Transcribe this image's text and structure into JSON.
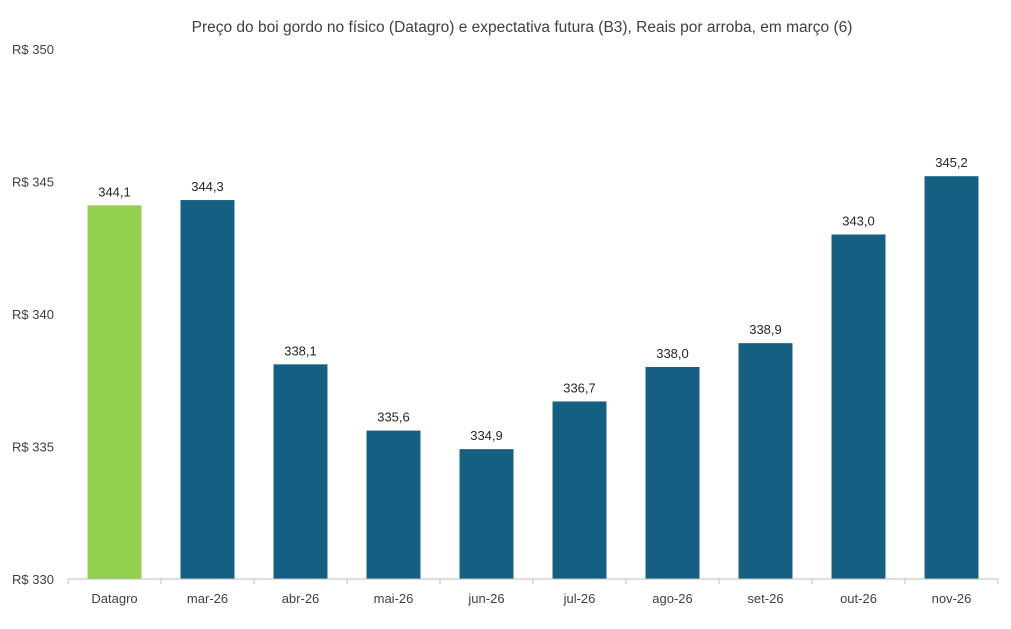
{
  "chart_data": {
    "type": "bar",
    "title": "Preço do boi gordo no físico (Datagro)  e expectativa futura (B3), Reais por arroba, em março (6)",
    "xlabel": "",
    "ylabel": "",
    "ylim": [
      330,
      350
    ],
    "yticks": [
      330,
      335,
      340,
      345,
      350
    ],
    "ytick_labels": [
      "R$ 330",
      "R$ 335",
      "R$ 340",
      "R$ 345",
      "R$ 350"
    ],
    "grid": false,
    "legend": "none",
    "categories": [
      "Datagro",
      "mar-26",
      "abr-26",
      "mai-26",
      "jun-26",
      "jul-26",
      "ago-26",
      "set-26",
      "out-26",
      "nov-26"
    ],
    "values": [
      344.1,
      344.3,
      338.1,
      335.6,
      334.9,
      336.7,
      338.0,
      338.9,
      343.0,
      345.2
    ],
    "value_labels": [
      "344,1",
      "344,3",
      "338,1",
      "335,6",
      "334,9",
      "336,7",
      "338,0",
      "338,9",
      "343,0",
      "345,2"
    ],
    "bar_colors": [
      "#92d050",
      "#156082",
      "#156082",
      "#156082",
      "#156082",
      "#156082",
      "#156082",
      "#156082",
      "#156082",
      "#156082"
    ],
    "axis_color": "#bfbfbf"
  }
}
